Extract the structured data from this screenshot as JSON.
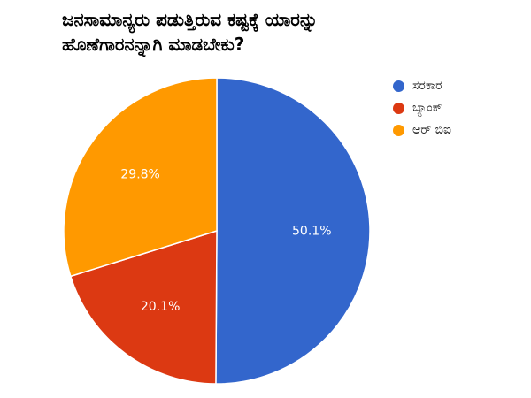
{
  "chart_data": {
    "type": "pie",
    "title_lines": [
      "ಜನಸಾಮಾನ್ಯರು ಪಡುತ್ತಿರುವ ಕಷ್ಟಕ್ಕೆ ಯಾರನ್ನು",
      "ಹೊಣೆಗಾರನನ್ನಾಗಿ ಮಾಡಬೇಕು?"
    ],
    "legend_position": "right",
    "series": [
      {
        "name": "ಸರಕಾರ",
        "value": 50.1,
        "label": "50.1%",
        "color": "#3366CC"
      },
      {
        "name": "ಬ್ಯಾಂಕ್",
        "value": 20.1,
        "label": "20.1%",
        "color": "#DC3912"
      },
      {
        "name": "ಆರ್ ಬಿಐ",
        "value": 29.8,
        "label": "29.8%",
        "color": "#FF9900"
      }
    ]
  }
}
